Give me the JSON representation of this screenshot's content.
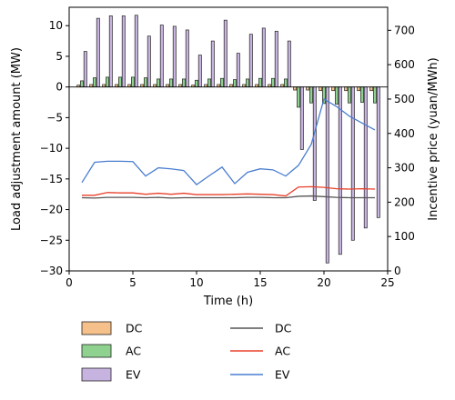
{
  "chart_data": {
    "type": "bar+line",
    "xlabel": "Time (h)",
    "ylabel_left": "Load adjustment amount (MW)",
    "ylabel_right": "Incentive price (yuan/MWh)",
    "xlim": [
      0,
      25
    ],
    "ylim_left": [
      -30,
      13
    ],
    "ylim_right": [
      0,
      767
    ],
    "x_ticks": [
      0,
      5,
      10,
      15,
      20,
      25
    ],
    "y_left_ticks": [
      -30,
      -25,
      -20,
      -15,
      -10,
      -5,
      0,
      5,
      10
    ],
    "y_right_ticks": [
      0,
      100,
      200,
      300,
      400,
      500,
      600,
      700
    ],
    "hours": [
      1,
      2,
      3,
      4,
      5,
      6,
      7,
      8,
      9,
      10,
      11,
      12,
      13,
      14,
      15,
      16,
      17,
      18,
      19,
      20,
      21,
      22,
      23,
      24
    ],
    "bar_series": [
      {
        "name": "DC",
        "color": "#f5c08a",
        "values": [
          0.3,
          0.4,
          0.4,
          0.4,
          0.4,
          0.4,
          0.4,
          0.4,
          0.4,
          0.3,
          0.4,
          0.4,
          0.4,
          0.4,
          0.4,
          0.4,
          0.4,
          -0.5,
          -0.5,
          -0.6,
          -0.6,
          -0.6,
          -0.6,
          -0.6
        ]
      },
      {
        "name": "AC",
        "color": "#8fd18f",
        "values": [
          1.0,
          1.5,
          1.6,
          1.6,
          1.6,
          1.5,
          1.3,
          1.3,
          1.3,
          1.1,
          1.3,
          1.4,
          1.2,
          1.3,
          1.4,
          1.4,
          1.3,
          -3.3,
          -2.6,
          -2.7,
          -2.8,
          -2.6,
          -2.5,
          -2.6
        ]
      },
      {
        "name": "EV",
        "color": "#c7b3df",
        "values": [
          5.8,
          11.2,
          11.6,
          11.6,
          11.7,
          8.3,
          10.1,
          9.9,
          9.3,
          5.2,
          7.5,
          10.9,
          5.5,
          8.6,
          9.6,
          9.1,
          7.5,
          -10.2,
          -18.5,
          -28.7,
          -27.3,
          -25.0,
          -23.0,
          -21.3
        ]
      }
    ],
    "line_series": [
      {
        "name": "DC",
        "color": "#555555",
        "values": [
          213,
          212,
          214,
          214,
          214,
          213,
          214,
          212,
          213,
          213,
          213,
          213,
          213,
          214,
          214,
          213,
          213,
          217,
          218,
          216,
          214,
          213,
          213,
          213
        ]
      },
      {
        "name": "AC",
        "color": "#e8402a",
        "values": [
          220,
          220,
          228,
          227,
          227,
          223,
          226,
          223,
          226,
          222,
          222,
          222,
          223,
          224,
          223,
          222,
          218,
          244,
          245,
          243,
          239,
          238,
          239,
          238
        ]
      },
      {
        "name": "EV",
        "color": "#4a7dd0",
        "values": [
          257,
          316,
          319,
          319,
          318,
          276,
          300,
          297,
          292,
          251,
          277,
          302,
          254,
          287,
          297,
          294,
          276,
          307,
          368,
          500,
          478,
          450,
          430,
          410
        ]
      }
    ],
    "legend": {
      "bars": [
        "DC",
        "AC",
        "EV"
      ],
      "lines": [
        "DC",
        "AC",
        "EV"
      ]
    }
  }
}
